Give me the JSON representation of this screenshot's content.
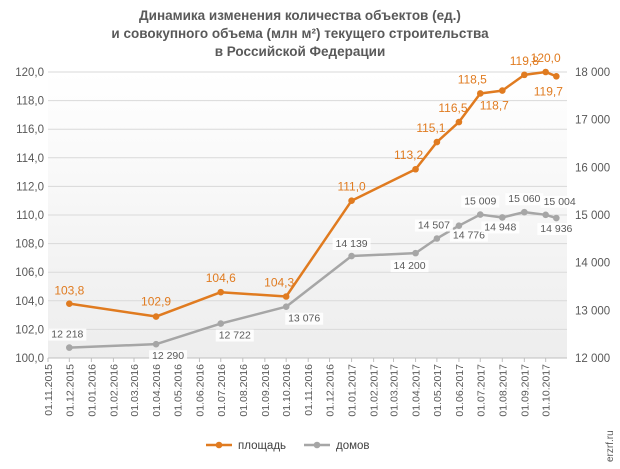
{
  "chart_data": {
    "type": "line",
    "title_lines": [
      "Динамика изменения количества объектов (ед.)",
      "и совокупного объема (млн м²) текущего строительства",
      "в Российской Федерации"
    ],
    "categories": [
      "01.11.2015",
      "01.12.2015",
      "01.01.2016",
      "01.02.2016",
      "01.03.2016",
      "01.04.2016",
      "01.05.2016",
      "01.06.2016",
      "01.07.2016",
      "01.08.2016",
      "01.09.2016",
      "01.10.2016",
      "01.11.2016",
      "01.12.2016",
      "01.01.2017",
      "01.02.2017",
      "01.03.2017",
      "01.04.2017",
      "01.05.2017",
      "01.06.2017",
      "01.07.2017",
      "01.08.2017",
      "01.09.2017",
      "01.10.2017"
    ],
    "y_left": {
      "min": 100,
      "max": 120,
      "step": 2,
      "ticks": [
        "100,0",
        "102,0",
        "104,0",
        "106,0",
        "108,0",
        "110,0",
        "112,0",
        "114,0",
        "116,0",
        "118,0",
        "120,0"
      ]
    },
    "y_right": {
      "min": 12000,
      "max": 18000,
      "step": 1000,
      "ticks": [
        "12 000",
        "13 000",
        "14 000",
        "15 000",
        "16 000",
        "17 000",
        "18 000"
      ]
    },
    "series": [
      {
        "name": "площадь",
        "axis": "left",
        "color": "#E07B20",
        "x": [
          "01.12.2015",
          "01.04.2016",
          "01.07.2016",
          "01.10.2016",
          "01.01.2017",
          "01.04.2017",
          "01.05.2017",
          "01.06.2017",
          "01.07.2017",
          "01.08.2017",
          "01.09.2017",
          "01.10.2017",
          "2017-10-16"
        ],
        "values": [
          103.8,
          102.9,
          104.6,
          104.3,
          111.0,
          113.2,
          115.1,
          116.5,
          118.5,
          118.7,
          119.8,
          120.0,
          119.7
        ],
        "labels": [
          "103,8",
          "102,9",
          "104,6",
          "104,3",
          "111,0",
          "113,2",
          "115,1",
          "116,5",
          "118,5",
          "118,7",
          "119,8",
          "120,0",
          "119,7"
        ]
      },
      {
        "name": "домов",
        "axis": "right",
        "color": "#A6A6A6",
        "x": [
          "01.12.2015",
          "01.04.2016",
          "01.07.2016",
          "01.10.2016",
          "01.01.2017",
          "01.04.2017",
          "01.05.2017",
          "01.06.2017",
          "01.07.2017",
          "01.08.2017",
          "01.09.2017",
          "01.10.2017",
          "2017-10-16"
        ],
        "values": [
          12218,
          12290,
          12722,
          13076,
          14139,
          14200,
          14507,
          14776,
          15009,
          14948,
          15060,
          15004,
          14936
        ],
        "labels": [
          "12 218",
          "12 290",
          "12 722",
          "13 076",
          "14 139",
          "14 200",
          "14 507",
          "14 776",
          "15 009",
          "14 948",
          "15 060",
          "15 004",
          "14 936"
        ]
      }
    ],
    "legend_position": "bottom"
  },
  "watermark": "erzrf.ru"
}
